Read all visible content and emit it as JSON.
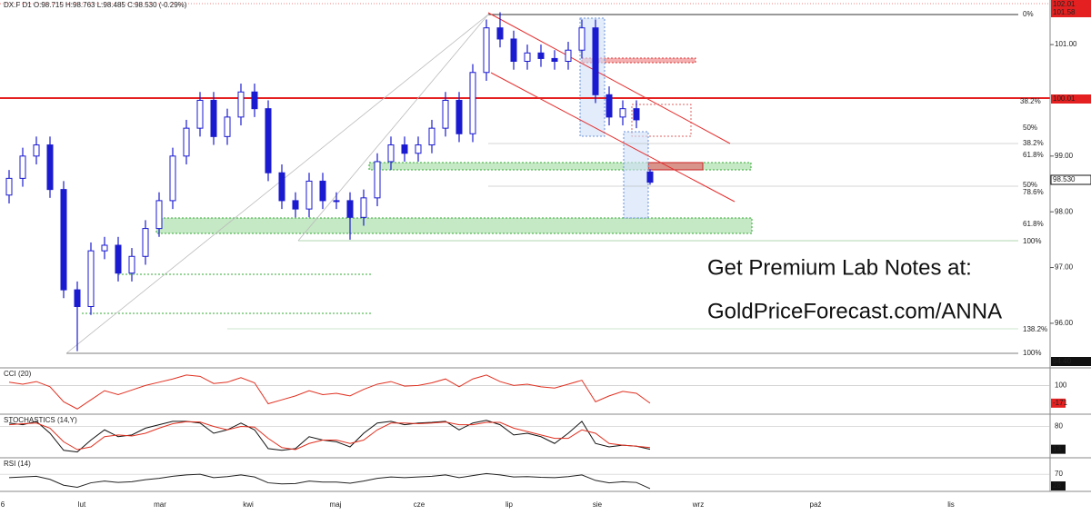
{
  "chart_data": {
    "type": "candlestick",
    "title": "DX.F  D1  O:98.715  H:98.763  L:98.485  C:98.530  (-0.29%)",
    "categories": [
      "6",
      "lut",
      "mar",
      "kwi",
      "maj",
      "cze",
      "lip",
      "sie",
      "wrz",
      "paź",
      "lis"
    ],
    "open": [
      98.3,
      98.6,
      99.0,
      99.2,
      98.4,
      96.6,
      96.3,
      97.3,
      97.4,
      96.9,
      97.2,
      97.7,
      98.2,
      99.0,
      99.5,
      100.0,
      99.35,
      99.7,
      100.15,
      99.85,
      98.7,
      98.2,
      98.05,
      98.55,
      98.2,
      98.2,
      97.9,
      98.25,
      98.9,
      99.2,
      99.05,
      99.2,
      99.5,
      100.0,
      99.4,
      100.5,
      101.3,
      101.1,
      100.7,
      100.85,
      100.75,
      100.7,
      100.9,
      101.3,
      100.1,
      99.7,
      99.85,
      98.715
    ],
    "high": [
      98.75,
      99.15,
      99.35,
      99.35,
      98.55,
      96.75,
      97.45,
      97.55,
      97.55,
      97.35,
      97.85,
      98.35,
      99.15,
      99.65,
      100.15,
      100.15,
      99.85,
      100.3,
      100.3,
      100.0,
      98.85,
      98.35,
      98.7,
      98.7,
      98.35,
      98.35,
      98.4,
      99.05,
      99.35,
      99.35,
      99.35,
      99.65,
      100.15,
      100.15,
      100.65,
      101.45,
      101.58,
      101.25,
      101.0,
      101.0,
      100.9,
      101.05,
      101.45,
      101.45,
      100.25,
      100.0,
      100.0,
      98.763
    ],
    "low": [
      98.15,
      98.45,
      98.85,
      98.25,
      96.45,
      95.5,
      96.15,
      97.15,
      96.75,
      96.75,
      97.05,
      97.55,
      98.05,
      98.85,
      99.35,
      99.2,
      99.2,
      99.55,
      99.7,
      98.55,
      98.05,
      97.9,
      97.9,
      98.05,
      98.05,
      97.5,
      97.75,
      98.1,
      98.75,
      98.9,
      98.9,
      99.05,
      99.35,
      99.25,
      99.25,
      100.35,
      100.95,
      100.55,
      100.55,
      100.6,
      100.55,
      100.55,
      100.75,
      99.95,
      99.55,
      99.55,
      99.5,
      98.485
    ],
    "close": [
      98.6,
      99.0,
      99.2,
      98.4,
      96.6,
      96.3,
      97.3,
      97.4,
      96.9,
      97.2,
      97.7,
      98.2,
      99.0,
      99.5,
      100.0,
      99.35,
      99.7,
      100.15,
      99.85,
      98.7,
      98.2,
      98.05,
      98.55,
      98.2,
      98.2,
      97.9,
      98.25,
      98.9,
      99.2,
      99.05,
      99.2,
      99.5,
      100.0,
      99.4,
      100.5,
      101.3,
      101.1,
      100.7,
      100.85,
      100.75,
      100.7,
      100.9,
      101.3,
      100.1,
      99.7,
      99.85,
      99.65,
      98.53
    ],
    "ylim": [
      95.2,
      101.8
    ],
    "yticks": [
      {
        "value": 101,
        "label": "101.00"
      },
      {
        "value": 99,
        "label": "99.00"
      },
      {
        "value": 98,
        "label": "98.00"
      },
      {
        "value": 97,
        "label": "97.00"
      },
      {
        "value": 96,
        "label": "96.00"
      }
    ],
    "price_labels": [
      "102.01",
      "101.58",
      "100.01",
      "98.530",
      "94.40"
    ],
    "annotations": [
      "0%",
      "38.2%",
      "50%",
      "38.2%",
      "61.8%",
      "50%",
      "78.6%",
      "61.8%",
      "100%",
      "138.2%",
      "100%"
    ],
    "promo": [
      "Get Premium Lab Notes at:",
      "GoldPriceForecast.com/ANNA"
    ],
    "color": "#1a1ad0",
    "indicators": [
      {
        "name": "CCI (20)",
        "ylim": [
          -340,
          370
        ],
        "yticks": [
          100
        ],
        "value_label": "-171",
        "series": [
          {
            "color": "#e03020",
            "values": [
              150,
              120,
              160,
              80,
              -150,
              -260,
              -120,
              20,
              -40,
              30,
              100,
              150,
              200,
              260,
              240,
              130,
              150,
              220,
              140,
              -180,
              -120,
              -60,
              20,
              -40,
              -20,
              -60,
              40,
              120,
              160,
              90,
              100,
              140,
              200,
              80,
              200,
              260,
              160,
              100,
              120,
              80,
              60,
              120,
              180,
              -150,
              -60,
              10,
              -20,
              -171
            ]
          }
        ]
      },
      {
        "name": "STOCHASTICS (14,Y)",
        "ylim": [
          -12,
          116
        ],
        "yticks": [
          80
        ],
        "value_label": "13",
        "series": [
          {
            "color": "#111111",
            "values": [
              90,
              85,
              95,
              60,
              10,
              5,
              40,
              70,
              50,
              55,
              75,
              85,
              95,
              95,
              90,
              60,
              70,
              90,
              70,
              15,
              10,
              15,
              50,
              40,
              35,
              20,
              60,
              90,
              95,
              85,
              90,
              92,
              95,
              70,
              90,
              98,
              85,
              55,
              60,
              50,
              30,
              60,
              95,
              30,
              20,
              25,
              22,
              13
            ]
          },
          {
            "color": "#e03020",
            "values": [
              85,
              88,
              90,
              75,
              35,
              12,
              20,
              50,
              55,
              52,
              60,
              75,
              88,
              94,
              93,
              80,
              70,
              80,
              78,
              45,
              18,
              12,
              30,
              40,
              40,
              30,
              40,
              70,
              90,
              90,
              88,
              90,
              93,
              85,
              85,
              92,
              92,
              75,
              65,
              55,
              45,
              45,
              70,
              60,
              30,
              25,
              22,
              18
            ]
          }
        ]
      },
      {
        "name": "RSI (14)",
        "ylim": [
          20,
          118
        ],
        "yticks": [
          70
        ],
        "value_label": "28",
        "series": [
          {
            "color": "#222222",
            "values": [
              60,
              62,
              64,
              55,
              38,
              32,
              45,
              50,
              46,
              48,
              54,
              58,
              64,
              68,
              70,
              60,
              63,
              68,
              62,
              45,
              42,
              43,
              50,
              47,
              47,
              44,
              50,
              58,
              62,
              60,
              62,
              64,
              68,
              60,
              66,
              72,
              68,
              62,
              63,
              61,
              60,
              63,
              68,
              52,
              45,
              48,
              46,
              28
            ]
          }
        ]
      }
    ]
  }
}
